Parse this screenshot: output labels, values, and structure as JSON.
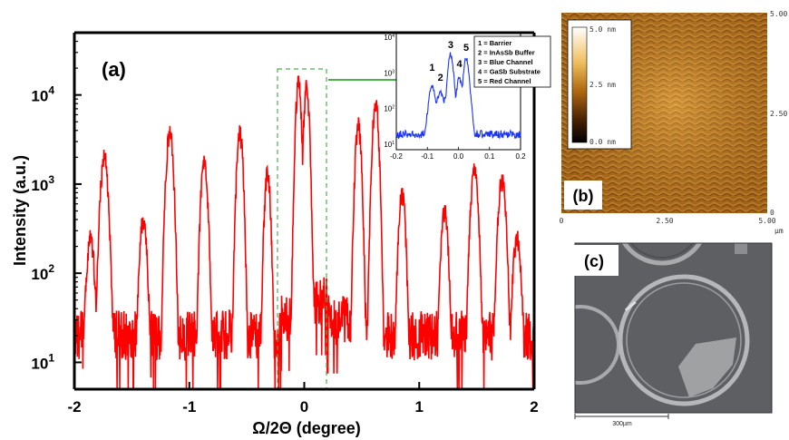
{
  "chart_data": [
    {
      "type": "line",
      "panel_label": "(a)",
      "xlabel": "Ω/2Θ (degree)",
      "ylabel": "Intensity (a.u.)",
      "xlim": [
        -2,
        2
      ],
      "ylim": [
        5,
        50000
      ],
      "yscale": "log",
      "x_ticks": [
        "-2",
        "-1",
        "0",
        "1",
        "2"
      ],
      "y_ticks": [
        {
          "value": 10,
          "base": "10",
          "exp": "1"
        },
        {
          "value": 100,
          "base": "10",
          "exp": "2"
        },
        {
          "value": 1000,
          "base": "10",
          "exp": "3"
        },
        {
          "value": 10000,
          "base": "10",
          "exp": "4"
        }
      ],
      "line_color": "#ff0000",
      "baseline": 20,
      "peaks": [
        {
          "x": -1.74,
          "y": 2000
        },
        {
          "x": -1.86,
          "y": 250
        },
        {
          "x": -1.4,
          "y": 400
        },
        {
          "x": -1.17,
          "y": 3800
        },
        {
          "x": -0.87,
          "y": 1850
        },
        {
          "x": -0.56,
          "y": 3700
        },
        {
          "x": -0.32,
          "y": 1300
        },
        {
          "x": -0.05,
          "y": 13500
        },
        {
          "x": 0.02,
          "y": 12000
        },
        {
          "x": 0.47,
          "y": 4500
        },
        {
          "x": 0.62,
          "y": 8000
        },
        {
          "x": 0.85,
          "y": 800
        },
        {
          "x": 1.22,
          "y": 500
        },
        {
          "x": 1.48,
          "y": 1400
        },
        {
          "x": 1.72,
          "y": 1100
        },
        {
          "x": 1.85,
          "y": 250
        }
      ],
      "highlight_range": [
        -0.24,
        0.2
      ]
    },
    {
      "type": "line",
      "xlim": [
        -0.2,
        0.2
      ],
      "x_ticks": [
        "-0.2",
        "-0.1",
        "0.0",
        "0.1",
        "0.2"
      ],
      "y_ticks": [
        {
          "base": "10",
          "exp": "1"
        },
        {
          "base": "10",
          "exp": "2"
        },
        {
          "base": "10",
          "exp": "3"
        },
        {
          "base": "10",
          "exp": "4"
        }
      ],
      "line_color": "#1a33ff",
      "peak_labels": [
        {
          "text": "1",
          "x": -0.085
        },
        {
          "text": "2",
          "x": -0.058
        },
        {
          "text": "3",
          "x": -0.025
        },
        {
          "text": "4",
          "x": 0.003
        },
        {
          "text": "5",
          "x": 0.025
        }
      ],
      "legend": [
        "1 = Barrier",
        "2 = InAsSb Buffer",
        "3 = Blue Channel",
        "4 = GaSb Substrate",
        "5 = Red Channel"
      ]
    }
  ],
  "afm": {
    "panel_label": "(b)",
    "scale_labels": [
      "5.0 nm",
      "2.5 nm",
      "0.0 nm"
    ],
    "x_axis_labels": [
      "0",
      "2.50",
      "5.00"
    ],
    "y_axis_labels": [
      "5.00",
      "2.50",
      "0"
    ],
    "unit_label": "µm"
  },
  "sem": {
    "panel_label": "(c)",
    "scale_bar_label": "300µm"
  }
}
